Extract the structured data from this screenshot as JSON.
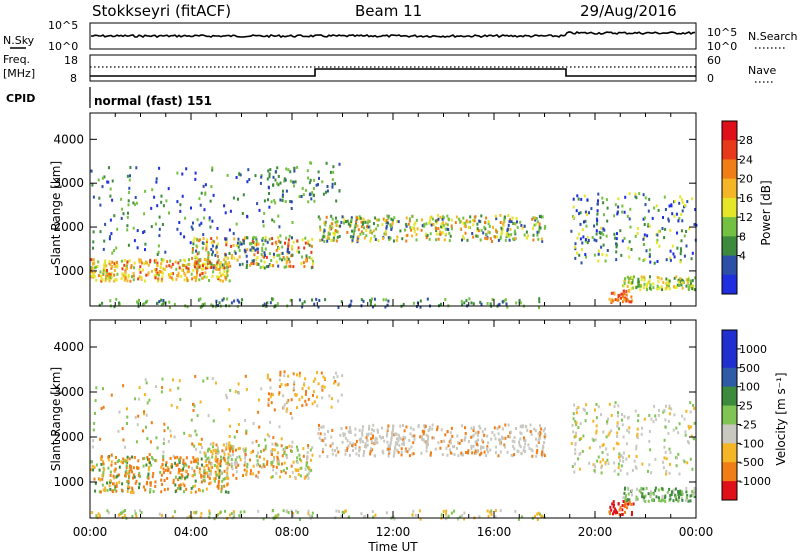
{
  "header": {
    "station": "Stokkseyri (fitACF)",
    "beam": "Beam 11",
    "date": "29/Aug/2016"
  },
  "noise_panel": {
    "left_label": "N.Sky",
    "right_label": "N.Search",
    "left_ticks": [
      "10^5",
      "10^0"
    ],
    "right_ticks": [
      "10^5",
      "10^0"
    ]
  },
  "freq_panel": {
    "left_label_line1": "Freq.",
    "left_label_line2": "[MHz]",
    "left_ticks": [
      "18",
      "8"
    ],
    "right_label": "Nave",
    "right_ticks": [
      "60",
      "0"
    ]
  },
  "cpid_panel": {
    "label": "CPID",
    "mode": "normal (fast) 151"
  },
  "power_panel": {
    "ylabel": "Slant Range [km]",
    "yticks": [
      "4000",
      "3000",
      "2000",
      "1000"
    ],
    "colorbar_label": "Power [dB]",
    "colorbar_ticks": [
      "28",
      "24",
      "20",
      "16",
      "12",
      "8",
      "4"
    ],
    "colors": [
      "#1f2fe0",
      "#2e4fa8",
      "#3c8a3c",
      "#74c141",
      "#e5e62a",
      "#f4b526",
      "#f07d16",
      "#e83a1a",
      "#e0101a"
    ]
  },
  "velocity_panel": {
    "ylabel": "Slant Range [km]",
    "yticks": [
      "4000",
      "3000",
      "2000",
      "1000"
    ],
    "colorbar_label": "Velocity [m s⁻¹]",
    "colorbar_ticks": [
      "1000",
      "500",
      "100",
      "25",
      "-25",
      "-100",
      "-500",
      "-1000"
    ],
    "colors": [
      "#1f2fd0",
      "#2f5aa5",
      "#3c8a3c",
      "#7fc454",
      "#c8c8c0",
      "#f4b526",
      "#f07d16",
      "#e0101a"
    ]
  },
  "xaxis": {
    "label": "Time UT",
    "ticks": [
      "00:00",
      "04:00",
      "08:00",
      "12:00",
      "16:00",
      "20:00",
      "00:00"
    ]
  }
}
